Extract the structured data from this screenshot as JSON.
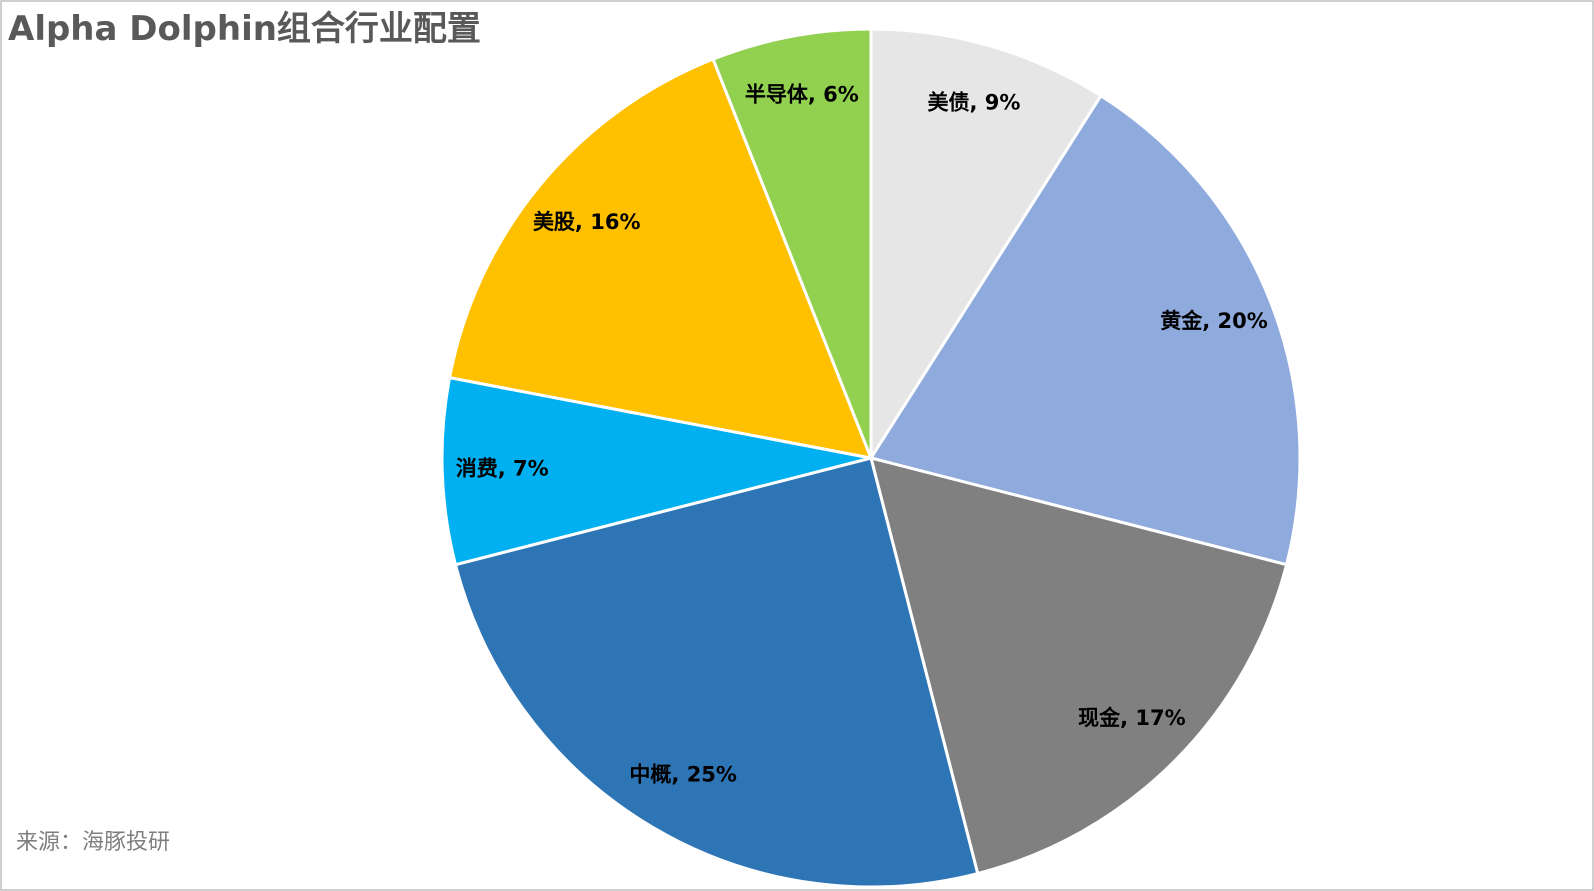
{
  "chart_data": {
    "type": "pie",
    "title": "Alpha Dolphin组合行业配置",
    "categories": [
      "美债",
      "黄金",
      "现金",
      "中概",
      "消费",
      "美股",
      "半导体"
    ],
    "values": [
      9,
      20,
      17,
      25,
      7,
      16,
      6
    ],
    "value_labels": [
      "美债, 9%",
      "黄金, 20%",
      "现金, 17%",
      "中概, 25%",
      "消费, 7%",
      "美股, 16%",
      "半导体, 6%"
    ],
    "colors": [
      "#e7e6e6",
      "#8faadc",
      "#808080",
      "#2e75b6",
      "#00b0f0",
      "#ffc000",
      "#92d050"
    ],
    "source": "来源：海豚投研"
  }
}
